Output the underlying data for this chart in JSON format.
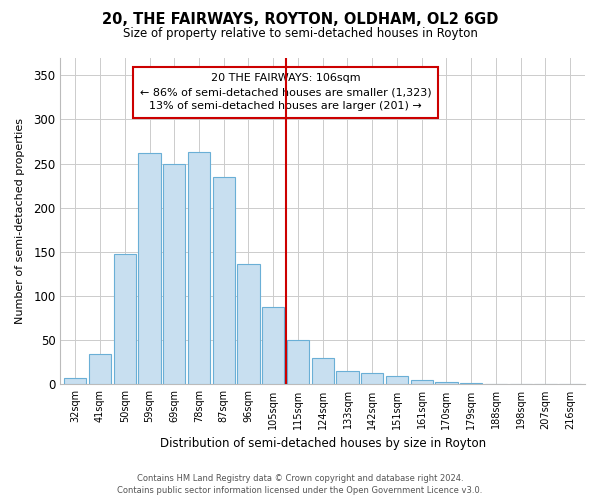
{
  "title": "20, THE FAIRWAYS, ROYTON, OLDHAM, OL2 6GD",
  "subtitle": "Size of property relative to semi-detached houses in Royton",
  "xlabel": "Distribution of semi-detached houses by size in Royton",
  "ylabel": "Number of semi-detached properties",
  "bar_labels": [
    "32sqm",
    "41sqm",
    "50sqm",
    "59sqm",
    "69sqm",
    "78sqm",
    "87sqm",
    "96sqm",
    "105sqm",
    "115sqm",
    "124sqm",
    "133sqm",
    "142sqm",
    "151sqm",
    "161sqm",
    "170sqm",
    "179sqm",
    "188sqm",
    "198sqm",
    "207sqm",
    "216sqm"
  ],
  "bar_values": [
    7,
    35,
    148,
    262,
    250,
    263,
    235,
    136,
    88,
    50,
    30,
    15,
    13,
    9,
    5,
    3,
    2,
    1,
    1,
    0,
    1
  ],
  "bar_color": "#c8dff0",
  "bar_edge_color": "#6aafd6",
  "highlight_index": 8,
  "highlight_line_color": "#cc0000",
  "box_text_line1": "20 THE FAIRWAYS: 106sqm",
  "box_text_line2": "← 86% of semi-detached houses are smaller (1,323)",
  "box_text_line3": "13% of semi-detached houses are larger (201) →",
  "ylim": [
    0,
    370
  ],
  "yticks": [
    0,
    50,
    100,
    150,
    200,
    250,
    300,
    350
  ],
  "footer_line1": "Contains HM Land Registry data © Crown copyright and database right 2024.",
  "footer_line2": "Contains public sector information licensed under the Open Government Licence v3.0.",
  "background_color": "#ffffff",
  "grid_color": "#cccccc"
}
